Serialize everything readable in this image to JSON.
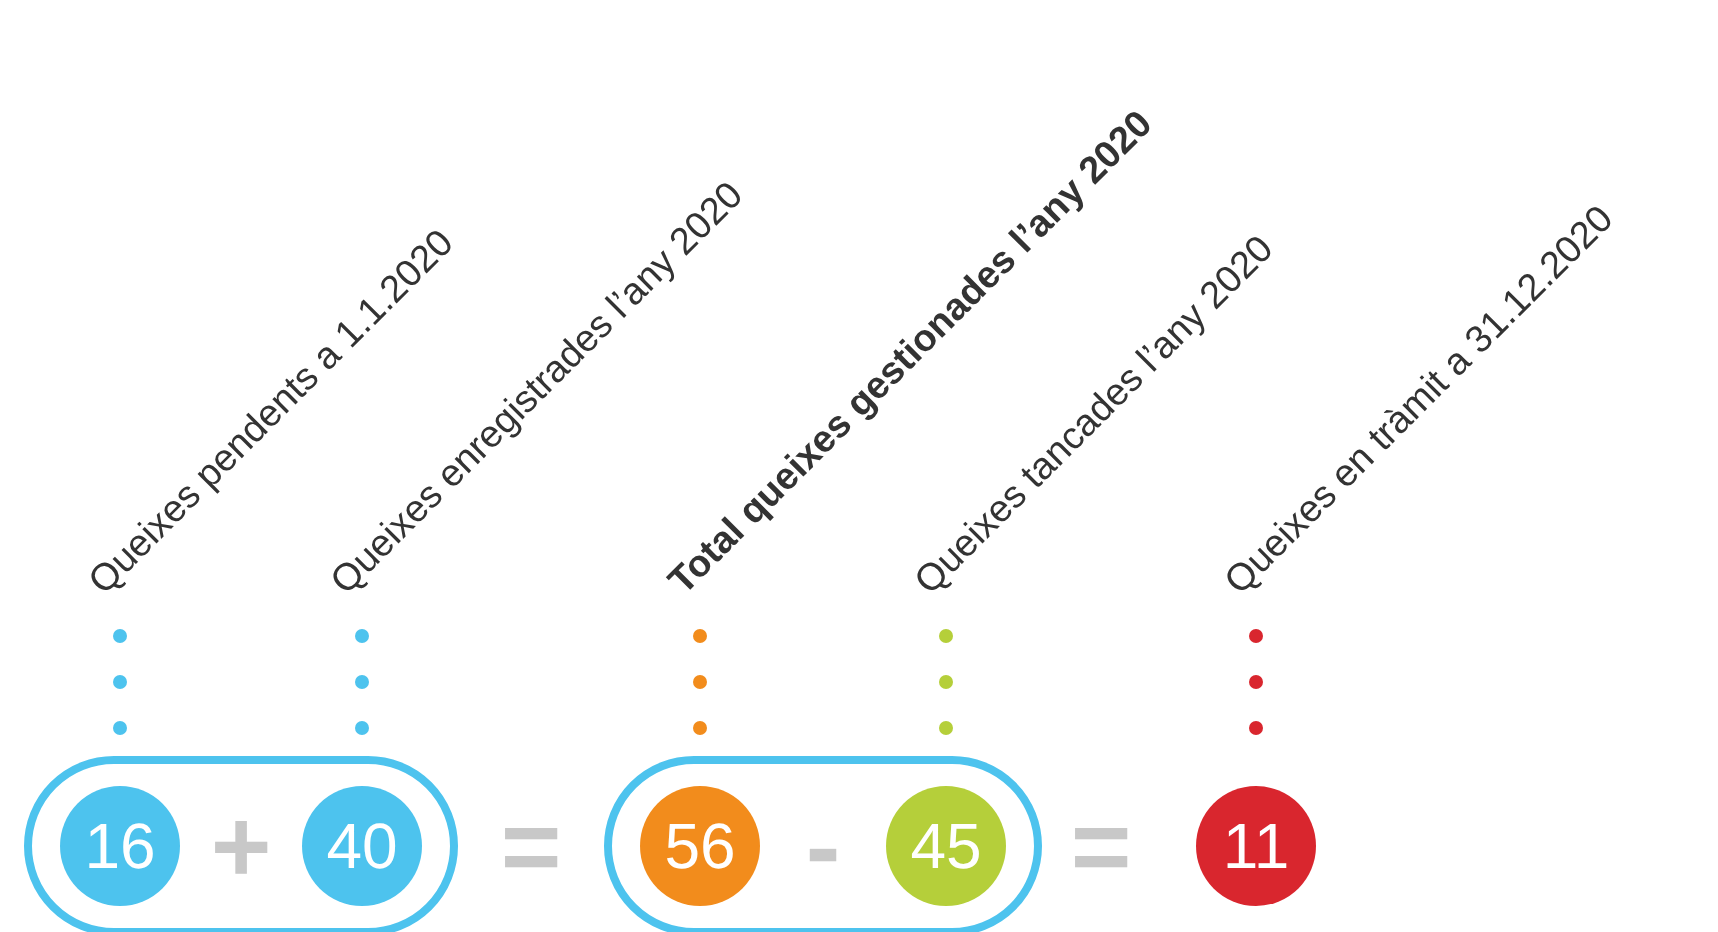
{
  "chart_data": {
    "type": "other",
    "categories": [
      "Queixes pendents a 1.1.2020",
      "Queixes enregistrades l’any 2020",
      "Total queixes gestionades l’any 2020",
      "Queixes tancades l’any 2020",
      "Queixes en tràmit a 31.12.2020"
    ],
    "values": [
      16,
      40,
      56,
      45,
      11
    ],
    "colors": [
      "#4dc3ee",
      "#4dc3ee",
      "#f28c1c",
      "#b5cf3a",
      "#d9262e"
    ],
    "annotations": [
      "+",
      "=",
      "-",
      "="
    ],
    "data_labels": true
  }
}
